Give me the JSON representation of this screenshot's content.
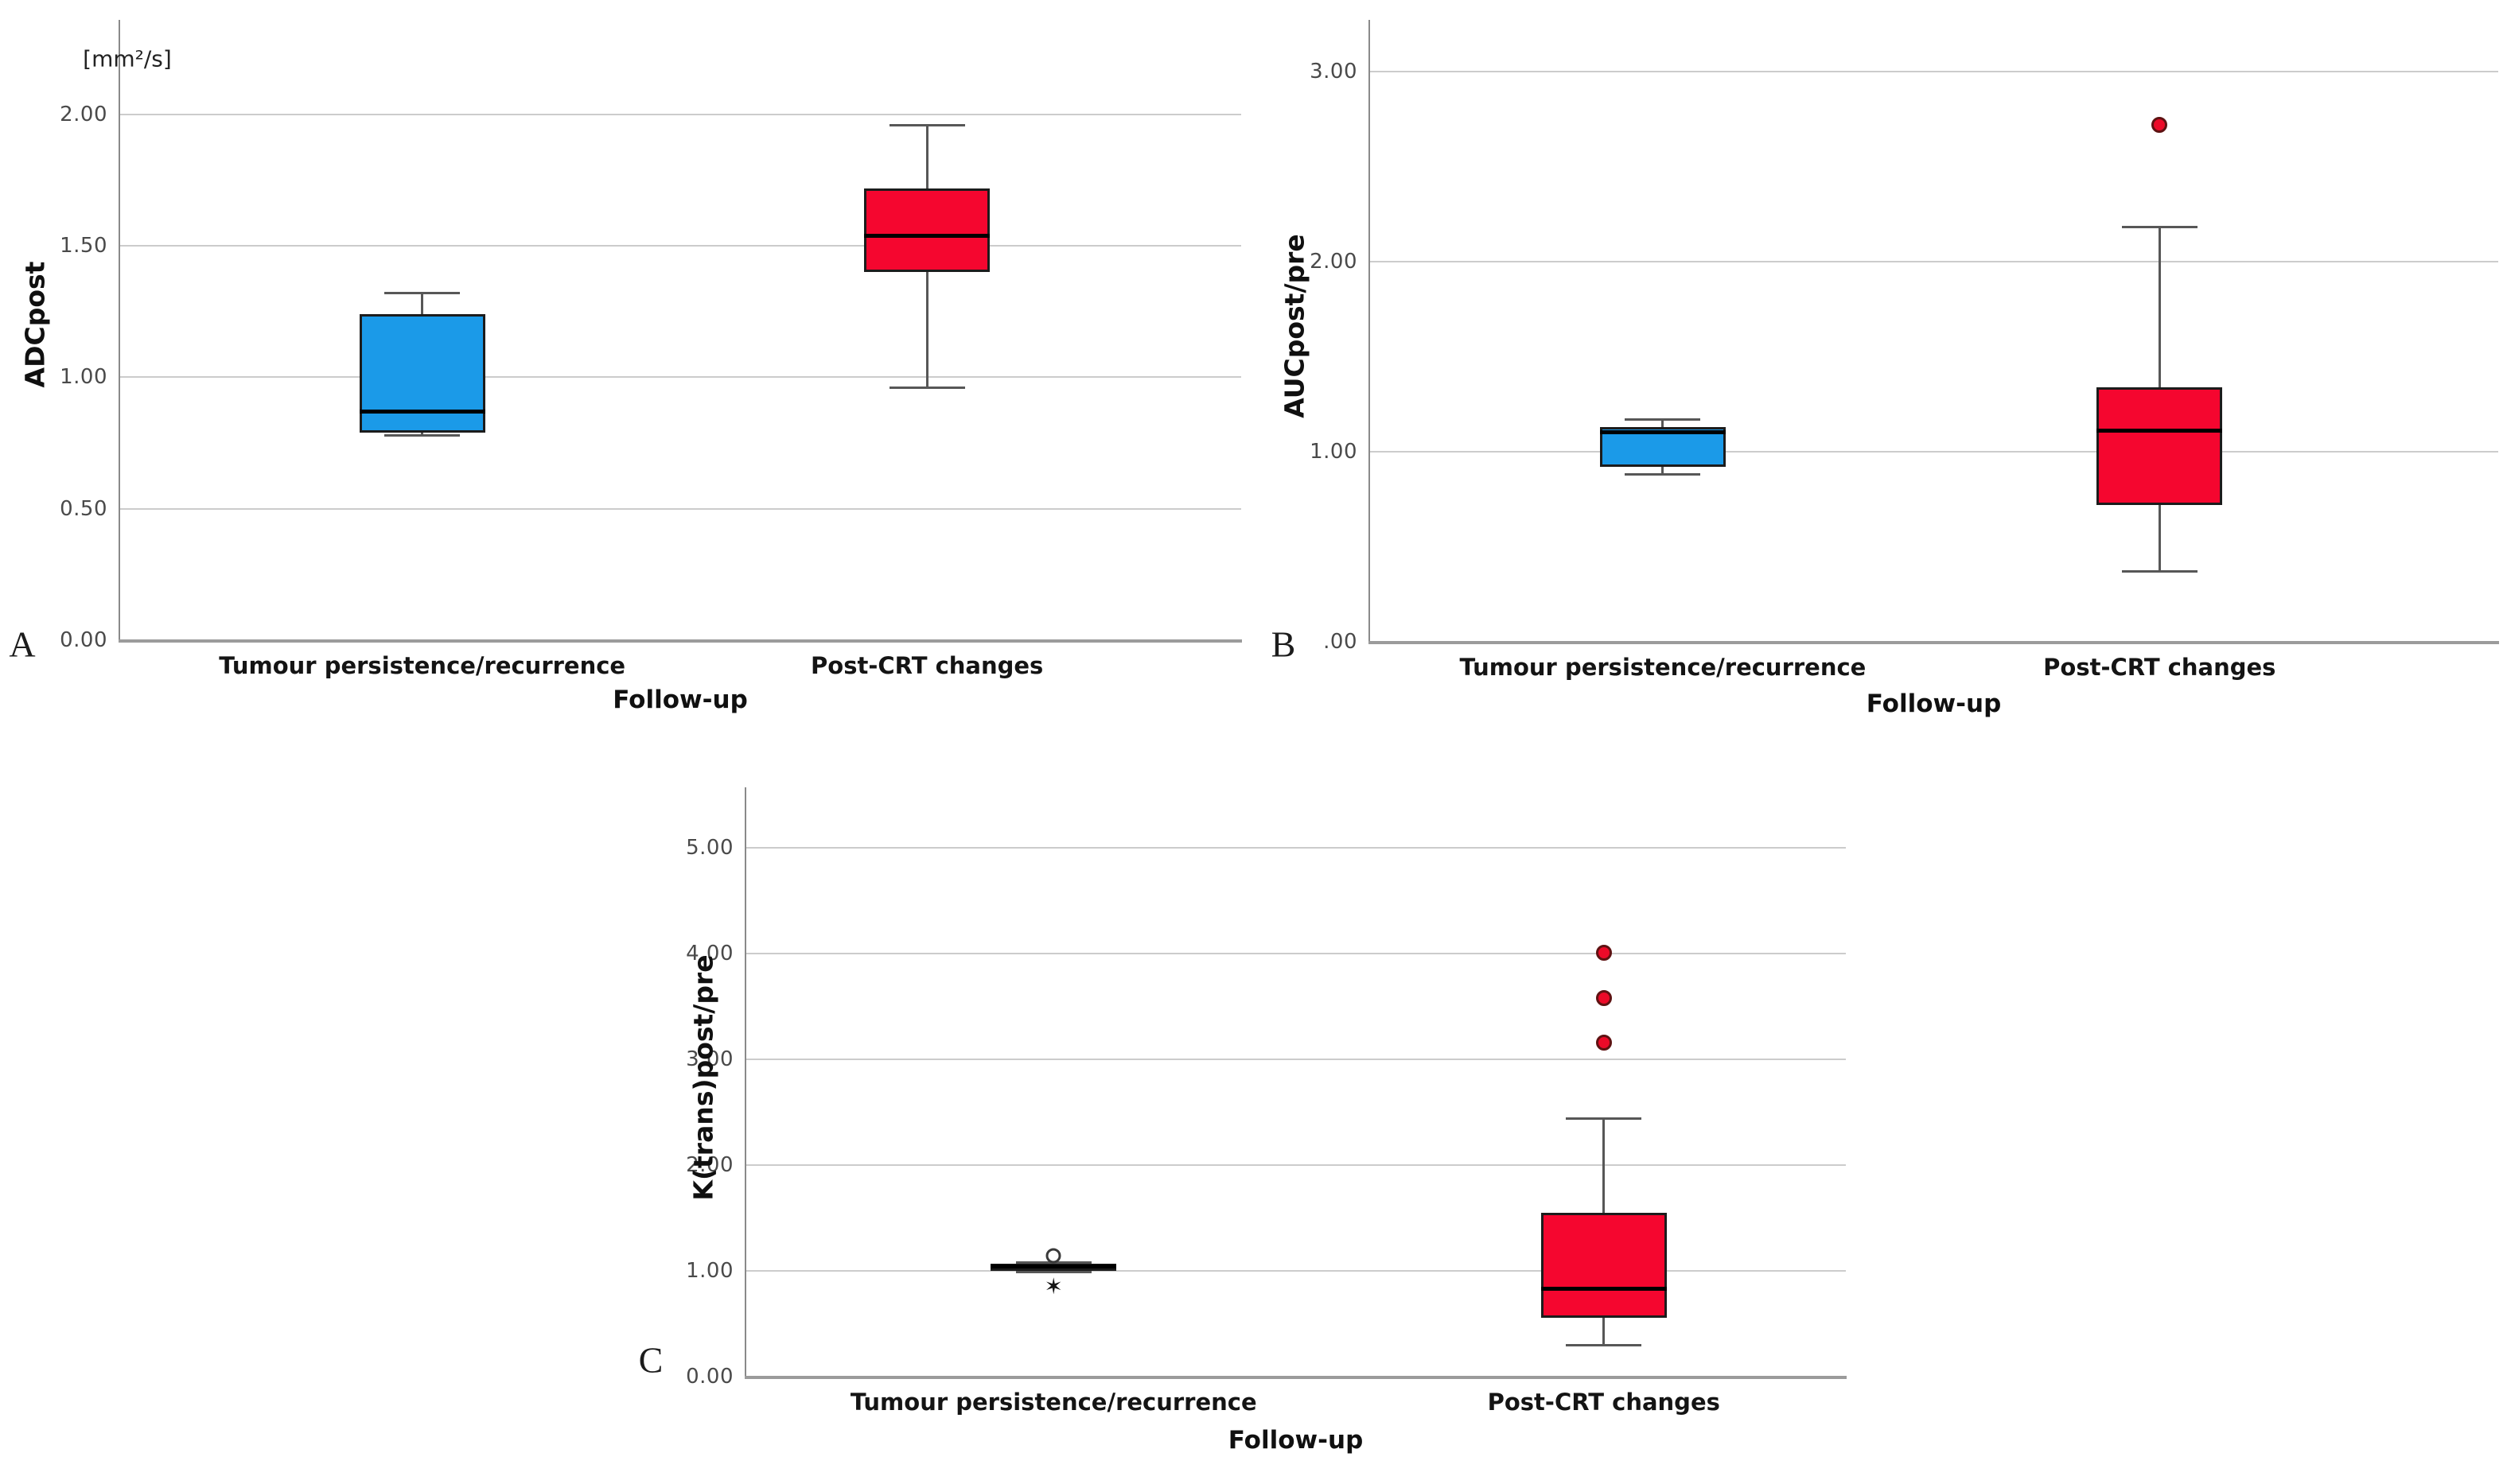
{
  "colors": {
    "group_blue": "#1b9ae8",
    "group_red": "#f5062f",
    "outlier_fill": "#ec0a28",
    "gridline": "#cccccc",
    "axis": "#9b9b9b",
    "tick_text": "#4a4a4a"
  },
  "x_axis_title": "Follow-up",
  "categories": [
    "Tumour persistence/recurrence",
    "Post-CRT changes"
  ],
  "chart_data": [
    {
      "type": "box",
      "panel_label": "A",
      "title": "",
      "ylabel": "ADCpost",
      "xlabel": "Follow-up",
      "unit_annotation": "[mm²/s]",
      "categories": [
        "Tumour persistence/recurrence",
        "Post-CRT changes"
      ],
      "ytick_values": [
        0,
        0.5,
        1,
        1.5,
        2
      ],
      "ytick_labels": [
        "0.00",
        "0.50",
        "1.00",
        "1.50",
        "2.00"
      ],
      "ylim": [
        0,
        2.36
      ],
      "grid": true,
      "legend": "none",
      "series": [
        {
          "name": "Tumour persistence/recurrence",
          "color": "#1b9ae8",
          "whisker_low": 0.78,
          "q1": 0.79,
          "median": 0.87,
          "q3": 1.24,
          "whisker_high": 1.32,
          "outliers": [],
          "extremes": []
        },
        {
          "name": "Post-CRT changes",
          "color": "#f5062f",
          "whisker_low": 0.96,
          "q1": 1.4,
          "median": 1.54,
          "q3": 1.72,
          "whisker_high": 1.96,
          "outliers": [],
          "extremes": []
        }
      ]
    },
    {
      "type": "box",
      "panel_label": "B",
      "title": "",
      "ylabel": "AUCpost/pre",
      "xlabel": "Follow-up",
      "unit_annotation": "",
      "categories": [
        "Tumour persistence/recurrence",
        "Post-CRT changes"
      ],
      "ytick_values": [
        0,
        1,
        2,
        3
      ],
      "ytick_labels": [
        ".00",
        "1.00",
        "2.00",
        "3.00"
      ],
      "ylim": [
        0,
        3.27
      ],
      "grid": true,
      "legend": "none",
      "series": [
        {
          "name": "Tumour persistence/recurrence",
          "color": "#1b9ae8",
          "whisker_low": 0.88,
          "q1": 0.92,
          "median": 1.1,
          "q3": 1.13,
          "whisker_high": 1.17,
          "outliers": [],
          "extremes": []
        },
        {
          "name": "Post-CRT changes",
          "color": "#f5062f",
          "whisker_low": 0.37,
          "q1": 0.72,
          "median": 1.11,
          "q3": 1.34,
          "whisker_high": 2.18,
          "outliers": [
            2.72
          ],
          "extremes": []
        }
      ]
    },
    {
      "type": "box",
      "panel_label": "C",
      "title": "",
      "ylabel": "K(trans)post/pre",
      "xlabel": "Follow-up",
      "unit_annotation": "",
      "categories": [
        "Tumour persistence/recurrence",
        "Post-CRT changes"
      ],
      "ytick_values": [
        0,
        1,
        2,
        3,
        4,
        5
      ],
      "ytick_labels": [
        "0.00",
        "1.00",
        "2.00",
        "3.00",
        "4.00",
        "5.00"
      ],
      "ylim": [
        0,
        5.57
      ],
      "grid": true,
      "legend": "none",
      "series": [
        {
          "name": "Tumour persistence/recurrence",
          "color": "#1b9ae8",
          "whisker_low": 0.99,
          "q1": 1.0,
          "median": 1.04,
          "q3": 1.07,
          "whisker_high": 1.08,
          "outliers": [
            1.14
          ],
          "extremes": [
            0.85
          ]
        },
        {
          "name": "Post-CRT changes",
          "color": "#f5062f",
          "whisker_low": 0.3,
          "q1": 0.56,
          "median": 0.83,
          "q3": 1.55,
          "whisker_high": 2.44,
          "outliers": [
            3.16,
            3.58,
            4.01
          ],
          "extremes": []
        }
      ]
    }
  ]
}
